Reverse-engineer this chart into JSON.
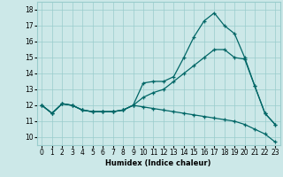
{
  "xlabel": "Humidex (Indice chaleur)",
  "bg_color": "#cce8e8",
  "grid_color": "#99cccc",
  "line_color": "#006666",
  "xlim": [
    -0.5,
    23.5
  ],
  "ylim": [
    9.5,
    18.5
  ],
  "xticks": [
    0,
    1,
    2,
    3,
    4,
    5,
    6,
    7,
    8,
    9,
    10,
    11,
    12,
    13,
    14,
    15,
    16,
    17,
    18,
    19,
    20,
    21,
    22,
    23
  ],
  "yticks": [
    10,
    11,
    12,
    13,
    14,
    15,
    16,
    17,
    18
  ],
  "line1_x": [
    0,
    1,
    2,
    3,
    4,
    5,
    6,
    7,
    8,
    9,
    10,
    11,
    12,
    13,
    14,
    15,
    16,
    17,
    18,
    19,
    20,
    21,
    22,
    23
  ],
  "line1_y": [
    12.0,
    11.5,
    12.1,
    12.0,
    11.7,
    11.6,
    11.6,
    11.6,
    11.7,
    12.0,
    13.4,
    13.5,
    13.5,
    13.8,
    15.0,
    16.3,
    17.3,
    17.8,
    17.0,
    16.5,
    15.0,
    13.2,
    11.5,
    10.8
  ],
  "line2_x": [
    0,
    1,
    2,
    3,
    4,
    5,
    6,
    7,
    8,
    9,
    10,
    11,
    12,
    13,
    14,
    15,
    16,
    17,
    18,
    19,
    20,
    21,
    22,
    23
  ],
  "line2_y": [
    12.0,
    11.5,
    12.1,
    12.0,
    11.7,
    11.6,
    11.6,
    11.6,
    11.7,
    12.0,
    12.5,
    12.8,
    13.0,
    13.5,
    14.0,
    14.5,
    15.0,
    15.5,
    15.5,
    15.0,
    14.9,
    13.2,
    11.5,
    10.8
  ],
  "line3_x": [
    0,
    1,
    2,
    3,
    4,
    5,
    6,
    7,
    8,
    9,
    10,
    11,
    12,
    13,
    14,
    15,
    16,
    17,
    18,
    19,
    20,
    21,
    22,
    23
  ],
  "line3_y": [
    12.0,
    11.5,
    12.1,
    12.0,
    11.7,
    11.6,
    11.6,
    11.6,
    11.7,
    12.0,
    11.9,
    11.8,
    11.7,
    11.6,
    11.5,
    11.4,
    11.3,
    11.2,
    11.1,
    11.0,
    10.8,
    10.5,
    10.2,
    9.7
  ],
  "marker_size": 2.5,
  "linewidth": 0.9,
  "axis_fontsize": 6,
  "tick_fontsize": 5.5
}
